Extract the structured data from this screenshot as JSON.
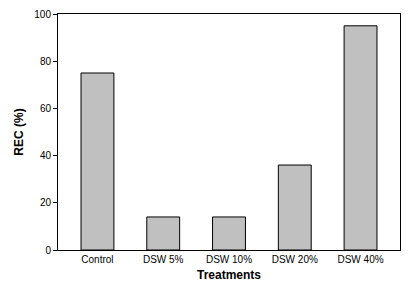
{
  "chart_data": {
    "type": "bar",
    "x_label": "Treatments",
    "y_label": "REC (%)",
    "categories": [
      "Control",
      "DSW 5%",
      "DSW 10%",
      "DSW 20%",
      "DSW 40%"
    ],
    "values": [
      75,
      14,
      14,
      36,
      95
    ],
    "color": "#c0c0c0",
    "ylim": [
      0,
      100
    ],
    "yticks": [
      0,
      20,
      40,
      60,
      80,
      100
    ],
    "grid": false
  }
}
